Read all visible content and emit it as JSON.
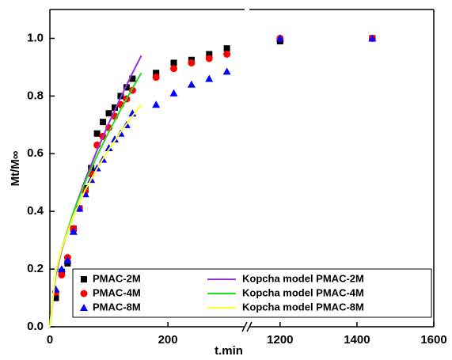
{
  "chart_data": {
    "type": "scatter",
    "x_label": "t.min",
    "y_label": "Mt/M∞",
    "x_segments": [
      {
        "xlim": [
          0,
          330
        ],
        "xticks": [
          0,
          200
        ]
      },
      {
        "xlim": [
          1120,
          1600
        ],
        "xticks": [
          1200,
          1400,
          1600
        ]
      }
    ],
    "ylim": [
      0,
      1.1
    ],
    "yticks": [
      {
        "value": 0,
        "label": "0.0"
      },
      {
        "value": 0.2,
        "label": "0.2"
      },
      {
        "value": 0.4,
        "label": "0.4"
      },
      {
        "value": 0.6,
        "label": "0.6"
      },
      {
        "value": 0.8,
        "label": "0.8"
      },
      {
        "value": 1,
        "label": "1.0"
      }
    ],
    "series": [
      {
        "name": "PMAC-2M",
        "kind": "scatter",
        "marker": "square",
        "color": "#000000",
        "x": [
          10,
          20,
          30,
          40,
          50,
          60,
          70,
          80,
          90,
          100,
          110,
          120,
          130,
          140,
          180,
          210,
          240,
          270,
          300,
          1200,
          1440
        ],
        "values": [
          0.1,
          0.19,
          0.22,
          0.34,
          0.41,
          0.48,
          0.55,
          0.67,
          0.71,
          0.74,
          0.76,
          0.8,
          0.83,
          0.86,
          0.88,
          0.915,
          0.925,
          0.945,
          0.965,
          0.99,
          1.0
        ]
      },
      {
        "name": "PMAC-4M",
        "kind": "scatter",
        "marker": "circle",
        "color": "#ff0000",
        "x": [
          10,
          20,
          30,
          40,
          50,
          60,
          70,
          80,
          90,
          100,
          110,
          120,
          130,
          140,
          180,
          210,
          240,
          270,
          300,
          1200,
          1440
        ],
        "values": [
          0.12,
          0.18,
          0.24,
          0.34,
          0.41,
          0.47,
          0.53,
          0.63,
          0.66,
          0.69,
          0.73,
          0.77,
          0.79,
          0.82,
          0.865,
          0.895,
          0.915,
          0.93,
          0.945,
          1.0,
          1.0
        ]
      },
      {
        "name": "PMAC-8M",
        "kind": "scatter",
        "marker": "triangle",
        "color": "#0000ff",
        "x": [
          10,
          20,
          30,
          40,
          50,
          60,
          70,
          80,
          90,
          100,
          110,
          120,
          130,
          140,
          180,
          210,
          240,
          270,
          300,
          1200,
          1440
        ],
        "values": [
          0.13,
          0.2,
          0.23,
          0.33,
          0.41,
          0.46,
          0.51,
          0.55,
          0.58,
          0.62,
          0.65,
          0.67,
          0.7,
          0.74,
          0.77,
          0.81,
          0.84,
          0.86,
          0.885,
          1.0,
          1.0
        ]
      },
      {
        "name": "Kopcha model PMAC-2M",
        "kind": "line",
        "color": "#9b30d9",
        "x": [
          0,
          10,
          20,
          40,
          60,
          80,
          100,
          120,
          140,
          155
        ],
        "values": [
          0,
          0.179,
          0.265,
          0.398,
          0.511,
          0.612,
          0.706,
          0.795,
          0.88,
          0.94
        ]
      },
      {
        "name": "Kopcha model PMAC-4M",
        "kind": "line",
        "color": "#22dd22",
        "x": [
          0,
          10,
          20,
          40,
          60,
          80,
          100,
          120,
          140,
          155
        ],
        "values": [
          0,
          0.187,
          0.271,
          0.398,
          0.502,
          0.593,
          0.676,
          0.753,
          0.827,
          0.88
        ]
      },
      {
        "name": "Kopcha model PMAC-8M",
        "kind": "line",
        "color": "#ffff33",
        "x": [
          0,
          10,
          20,
          40,
          60,
          80,
          100,
          120,
          140,
          155
        ],
        "values": [
          0,
          0.191,
          0.271,
          0.385,
          0.474,
          0.549,
          0.615,
          0.675,
          0.731,
          0.77
        ]
      }
    ]
  }
}
